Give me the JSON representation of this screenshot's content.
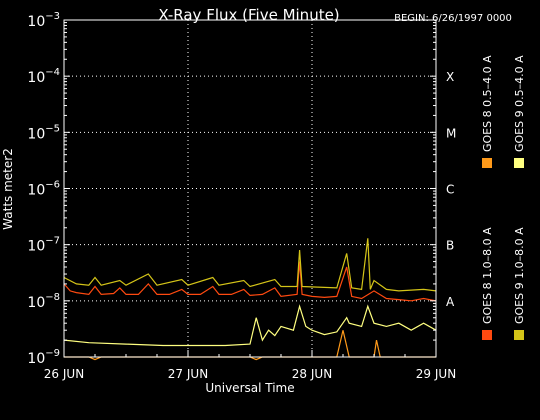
{
  "chart_data": {
    "type": "line",
    "title": "X-Ray Flux (Five Minute)",
    "begin_label": "BEGIN: 6/26/1997 0000",
    "xlabel": "Universal Time",
    "ylabel": "Watts meter2",
    "y_scale": "log",
    "ylim": [
      1e-09,
      0.001
    ],
    "xlim": [
      0,
      3
    ],
    "x_ticks": [
      {
        "value": 0,
        "label": "26 JUN"
      },
      {
        "value": 1,
        "label": "27 JUN"
      },
      {
        "value": 2,
        "label": "28 JUN"
      },
      {
        "value": 3,
        "label": "29 JUN"
      }
    ],
    "y_ticks": [
      {
        "value": 1e-09,
        "base": "10",
        "exp": "−9"
      },
      {
        "value": 1e-08,
        "base": "10",
        "exp": "−8"
      },
      {
        "value": 1e-07,
        "base": "10",
        "exp": "−7"
      },
      {
        "value": 1e-06,
        "base": "10",
        "exp": "−6"
      },
      {
        "value": 1e-05,
        "base": "10",
        "exp": "−5"
      },
      {
        "value": 0.0001,
        "base": "10",
        "exp": "−4"
      },
      {
        "value": 0.001,
        "base": "10",
        "exp": "−3"
      }
    ],
    "flare_classes": [
      {
        "label": "A",
        "value": 1e-08
      },
      {
        "label": "B",
        "value": 1e-07
      },
      {
        "label": "C",
        "value": 1e-06
      },
      {
        "label": "M",
        "value": 1e-05
      },
      {
        "label": "X",
        "value": 0.0001
      }
    ],
    "grid": {
      "horizontal_at": [
        1e-08,
        1e-07,
        1e-06,
        1e-05,
        0.0001
      ],
      "vertical_at": [
        1,
        2
      ],
      "style": "dotted"
    },
    "legend_position": "right, vertical",
    "series": [
      {
        "name": "GOES 8 1.0–8.0 A",
        "color": "#ff4a10",
        "points": [
          [
            0,
            2e-08
          ],
          [
            0.05,
            1.5e-08
          ],
          [
            0.1,
            1.4e-08
          ],
          [
            0.2,
            1.3e-08
          ],
          [
            0.25,
            1.8e-08
          ],
          [
            0.3,
            1.3e-08
          ],
          [
            0.4,
            1.35e-08
          ],
          [
            0.45,
            1.7e-08
          ],
          [
            0.5,
            1.3e-08
          ],
          [
            0.6,
            1.3e-08
          ],
          [
            0.68,
            2e-08
          ],
          [
            0.75,
            1.3e-08
          ],
          [
            0.85,
            1.3e-08
          ],
          [
            0.95,
            1.6e-08
          ],
          [
            1.0,
            1.3e-08
          ],
          [
            1.1,
            1.3e-08
          ],
          [
            1.2,
            1.8e-08
          ],
          [
            1.25,
            1.3e-08
          ],
          [
            1.35,
            1.3e-08
          ],
          [
            1.45,
            1.6e-08
          ],
          [
            1.5,
            1.25e-08
          ],
          [
            1.6,
            1.3e-08
          ],
          [
            1.7,
            1.7e-08
          ],
          [
            1.75,
            1.2e-08
          ],
          [
            1.88,
            1.3e-08
          ],
          [
            1.9,
            5e-08
          ],
          [
            1.92,
            1.3e-08
          ],
          [
            2.0,
            1.2e-08
          ],
          [
            2.1,
            1.15e-08
          ],
          [
            2.2,
            1.2e-08
          ],
          [
            2.28,
            4e-08
          ],
          [
            2.32,
            1.2e-08
          ],
          [
            2.4,
            1.1e-08
          ],
          [
            2.5,
            1.5e-08
          ],
          [
            2.6,
            1.1e-08
          ],
          [
            2.7,
            1.05e-08
          ],
          [
            2.8,
            1e-08
          ],
          [
            2.9,
            1.1e-08
          ],
          [
            3.0,
            1e-08
          ]
        ]
      },
      {
        "name": "GOES 8 0.5–4.0 A",
        "color": "#ff9a1a",
        "points": [
          [
            0.0,
            1e-09
          ],
          [
            0.2,
            1e-09
          ],
          [
            0.25,
            9e-10
          ],
          [
            0.3,
            1e-09
          ],
          [
            1.0,
            1e-09
          ],
          [
            1.5,
            1e-09
          ],
          [
            1.55,
            9e-10
          ],
          [
            1.6,
            1e-09
          ],
          [
            2.2,
            1e-09
          ],
          [
            2.25,
            3e-09
          ],
          [
            2.3,
            1e-09
          ],
          [
            2.5,
            1e-09
          ],
          [
            2.52,
            2e-09
          ],
          [
            2.55,
            1e-09
          ],
          [
            3.0,
            1e-09
          ]
        ]
      },
      {
        "name": "GOES 9 1.0–8.0 A",
        "color": "#d4c418",
        "points": [
          [
            0,
            2.6e-08
          ],
          [
            0.1,
            2e-08
          ],
          [
            0.2,
            1.9e-08
          ],
          [
            0.25,
            2.6e-08
          ],
          [
            0.3,
            1.9e-08
          ],
          [
            0.45,
            2.3e-08
          ],
          [
            0.5,
            1.9e-08
          ],
          [
            0.68,
            3e-08
          ],
          [
            0.75,
            1.9e-08
          ],
          [
            0.95,
            2.4e-08
          ],
          [
            1.0,
            1.9e-08
          ],
          [
            1.2,
            2.6e-08
          ],
          [
            1.25,
            1.9e-08
          ],
          [
            1.45,
            2.3e-08
          ],
          [
            1.5,
            1.8e-08
          ],
          [
            1.7,
            2.4e-08
          ],
          [
            1.75,
            1.8e-08
          ],
          [
            1.88,
            1.8e-08
          ],
          [
            1.9,
            8e-08
          ],
          [
            1.92,
            1.8e-08
          ],
          [
            2.2,
            1.7e-08
          ],
          [
            2.28,
            7e-08
          ],
          [
            2.32,
            1.7e-08
          ],
          [
            2.4,
            1.6e-08
          ],
          [
            2.45,
            1.3e-07
          ],
          [
            2.47,
            1.6e-08
          ],
          [
            2.5,
            2.3e-08
          ],
          [
            2.6,
            1.6e-08
          ],
          [
            2.7,
            1.5e-08
          ],
          [
            2.9,
            1.6e-08
          ],
          [
            3.0,
            1.5e-08
          ]
        ]
      },
      {
        "name": "GOES 9 0.5–4.0 A",
        "color": "#ffff80",
        "points": [
          [
            0,
            2e-09
          ],
          [
            0.2,
            1.8e-09
          ],
          [
            0.5,
            1.7e-09
          ],
          [
            0.8,
            1.6e-09
          ],
          [
            1.0,
            1.6e-09
          ],
          [
            1.3,
            1.6e-09
          ],
          [
            1.5,
            1.7e-09
          ],
          [
            1.55,
            5e-09
          ],
          [
            1.6,
            2e-09
          ],
          [
            1.65,
            3e-09
          ],
          [
            1.7,
            2.4e-09
          ],
          [
            1.75,
            3.5e-09
          ],
          [
            1.85,
            3e-09
          ],
          [
            1.9,
            8e-09
          ],
          [
            1.95,
            3.5e-09
          ],
          [
            2.0,
            3e-09
          ],
          [
            2.1,
            2.5e-09
          ],
          [
            2.2,
            2.8e-09
          ],
          [
            2.28,
            5e-09
          ],
          [
            2.3,
            4e-09
          ],
          [
            2.4,
            3.5e-09
          ],
          [
            2.45,
            8e-09
          ],
          [
            2.5,
            4e-09
          ],
          [
            2.6,
            3.5e-09
          ],
          [
            2.7,
            4e-09
          ],
          [
            2.8,
            3e-09
          ],
          [
            2.9,
            4e-09
          ],
          [
            3.0,
            3e-09
          ]
        ]
      }
    ]
  }
}
